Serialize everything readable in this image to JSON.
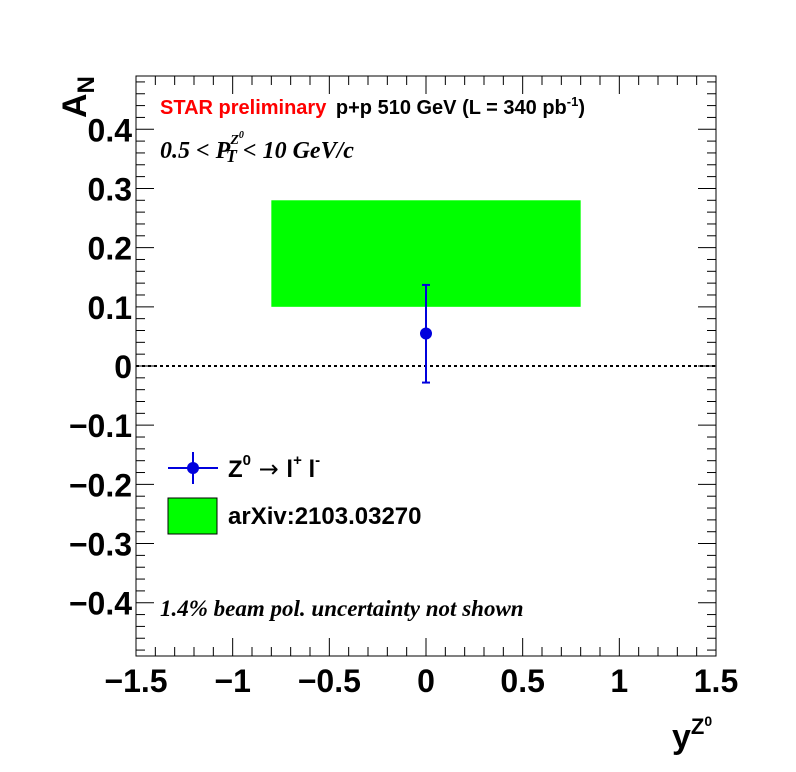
{
  "chart_data": {
    "type": "scatter",
    "xlabel": "y",
    "xlabel_sup": "Z",
    "xlabel_sup2": "0",
    "ylabel": "A",
    "ylabel_sub": "N",
    "xlim": [
      -1.5,
      1.5
    ],
    "ylim": [
      -0.49,
      0.49
    ],
    "x_ticks": [
      {
        "value": -1.5,
        "label": "−1.5"
      },
      {
        "value": -1,
        "label": "−1"
      },
      {
        "value": -0.5,
        "label": "−0.5"
      },
      {
        "value": 0,
        "label": "0"
      },
      {
        "value": 0.5,
        "label": "0.5"
      },
      {
        "value": 1,
        "label": "1"
      },
      {
        "value": 1.5,
        "label": "1.5"
      }
    ],
    "y_ticks": [
      {
        "value": -0.4,
        "label": "−0.4"
      },
      {
        "value": -0.3,
        "label": "−0.3"
      },
      {
        "value": -0.2,
        "label": "−0.2"
      },
      {
        "value": -0.1,
        "label": "−0.1"
      },
      {
        "value": 0,
        "label": "0"
      },
      {
        "value": 0.1,
        "label": "0.1"
      },
      {
        "value": 0.2,
        "label": "0.2"
      },
      {
        "value": 0.3,
        "label": "0.3"
      },
      {
        "value": 0.4,
        "label": "0.4"
      }
    ],
    "zero_line": true,
    "series": [
      {
        "name": "Z⁰ → l⁺ l⁻",
        "color": "#0000dd",
        "points": [
          {
            "x": 0.0,
            "y": 0.055,
            "yerr_low": 0.083,
            "yerr_high": 0.082
          }
        ]
      }
    ],
    "band": {
      "name": "arXiv:2103.03270",
      "color": "#00ff00",
      "x": [
        -0.8,
        0.8
      ],
      "y": [
        0.1,
        0.28
      ]
    },
    "annotations": {
      "star_label": "STAR preliminary",
      "star_color": "#ff0000",
      "collision": "p+p 510 GeV (L = 340 pb",
      "collision_sup": "-1",
      "collision_end": ")",
      "kin_lo": "0.5 < P",
      "kin_sub": "T",
      "kin_sup": "Z",
      "kin_sup2": "0",
      "kin_hi": " < 10 GeV/c",
      "pol_note": "1.4% beam pol. uncertainty not shown"
    },
    "legend": {
      "placement": "bottom-left",
      "entry1_base": "Z",
      "entry1_sup": "0",
      "entry1_arrow": " → ",
      "entry1_l1": "l",
      "entry1_l1_sup": "+",
      "entry1_l2": " l",
      "entry1_l2_sup": "-",
      "entry2": "arXiv:2103.03270"
    }
  }
}
